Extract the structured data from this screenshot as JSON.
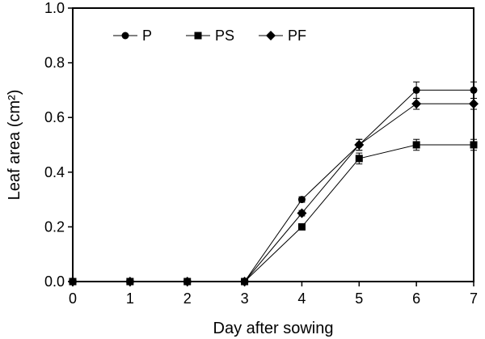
{
  "chart_data": {
    "type": "line",
    "title": "",
    "xlabel": "Day after sowing",
    "ylabel": "Leaf area (cm²)",
    "x": [
      0,
      1,
      2,
      3,
      4,
      5,
      6,
      7
    ],
    "xlim": [
      0,
      7
    ],
    "ylim": [
      0,
      1.0
    ],
    "x_ticks": [
      "0",
      "1",
      "2",
      "3",
      "4",
      "5",
      "6",
      "7"
    ],
    "y_ticks": [
      "0.0",
      "0.2",
      "0.4",
      "0.6",
      "0.8",
      "1.0"
    ],
    "y_tick_values": [
      0,
      0.2,
      0.4,
      0.6,
      0.8,
      1.0
    ],
    "grid": false,
    "legend_position": "top-left",
    "series": [
      {
        "name": "P",
        "marker": "circle",
        "values": [
          0,
          0,
          0,
          0,
          0.3,
          0.5,
          0.7,
          0.7
        ],
        "errors": [
          0,
          0,
          0,
          0,
          0.01,
          0.02,
          0.03,
          0.03
        ]
      },
      {
        "name": "PS",
        "marker": "square",
        "values": [
          0,
          0,
          0,
          0,
          0.2,
          0.45,
          0.5,
          0.5
        ],
        "errors": [
          0,
          0,
          0,
          0,
          0.01,
          0.02,
          0.02,
          0.02
        ]
      },
      {
        "name": "PF",
        "marker": "diamond",
        "values": [
          0,
          0,
          0,
          0,
          0.25,
          0.5,
          0.65,
          0.65
        ],
        "errors": [
          0,
          0,
          0,
          0,
          0.01,
          0.02,
          0.02,
          0.02
        ]
      }
    ]
  }
}
